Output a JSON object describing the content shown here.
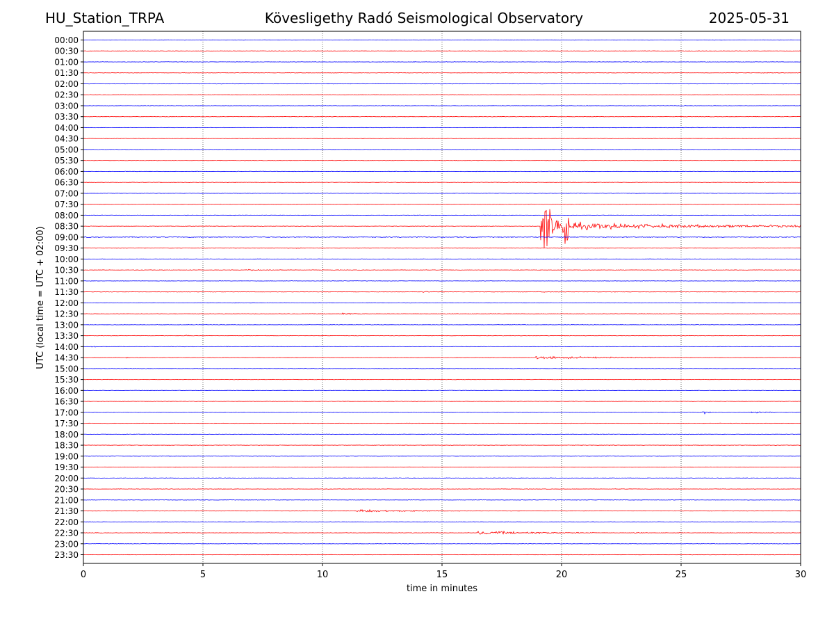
{
  "header": {
    "station": "HU_Station_TRPA",
    "observatory": "Kövesligethy Radó Seismological Observatory",
    "date": "2025-05-31"
  },
  "chart_data": {
    "type": "line",
    "xlabel": "time in minutes",
    "ylabel": "UTC (local time = UTC + 02:00)",
    "xlim": [
      0,
      30
    ],
    "x_ticks": [
      "0",
      "5",
      "10",
      "15",
      "20",
      "25",
      "30"
    ],
    "x_tick_values": [
      0,
      5,
      10,
      15,
      20,
      25,
      30
    ],
    "vertical_grid": "dotted",
    "colors": {
      "even_hour": "#0000ff",
      "half_hour": "#ff0000"
    },
    "rows": [
      "00:00",
      "00:30",
      "01:00",
      "01:30",
      "02:00",
      "02:30",
      "03:00",
      "03:30",
      "04:00",
      "04:30",
      "05:00",
      "05:30",
      "06:00",
      "06:30",
      "07:00",
      "07:30",
      "08:00",
      "08:30",
      "09:00",
      "09:30",
      "10:00",
      "10:30",
      "11:00",
      "11:30",
      "12:00",
      "12:30",
      "13:00",
      "13:30",
      "14:00",
      "14:30",
      "15:00",
      "15:30",
      "16:00",
      "16:30",
      "17:00",
      "17:30",
      "18:00",
      "18:30",
      "19:00",
      "19:30",
      "20:00",
      "20:30",
      "21:00",
      "21:30",
      "22:00",
      "22:30",
      "23:00",
      "23:30"
    ],
    "events": [
      {
        "row": "03:00",
        "start_min": 25.0,
        "duration_min": 0.3,
        "peak_amplitude": 0.35
      },
      {
        "row": "08:30",
        "start_min": 19.1,
        "duration_min": 11.0,
        "peak_amplitude": 14.0,
        "main_event": true
      },
      {
        "row": "09:30",
        "start_min": 8.9,
        "duration_min": 0.25,
        "peak_amplitude": 0.25
      },
      {
        "row": "10:30",
        "start_min": 6.8,
        "duration_min": 1.8,
        "peak_amplitude": 0.3
      },
      {
        "row": "11:30",
        "start_min": 14.1,
        "duration_min": 1.2,
        "peak_amplitude": 0.35
      },
      {
        "row": "11:30",
        "start_min": 19.0,
        "duration_min": 0.8,
        "peak_amplitude": 0.3
      },
      {
        "row": "12:30",
        "start_min": 10.8,
        "duration_min": 1.0,
        "peak_amplitude": 0.4
      },
      {
        "row": "13:30",
        "start_min": 4.3,
        "duration_min": 0.4,
        "peak_amplitude": 0.3
      },
      {
        "row": "14:00",
        "start_min": 0.3,
        "duration_min": 0.3,
        "peak_amplitude": 0.45
      },
      {
        "row": "14:30",
        "start_min": 1.8,
        "duration_min": 0.3,
        "peak_amplitude": 0.35
      },
      {
        "row": "14:30",
        "start_min": 18.9,
        "duration_min": 5.5,
        "peak_amplitude": 0.8
      },
      {
        "row": "17:00",
        "start_min": 25.9,
        "duration_min": 0.4,
        "peak_amplitude": 0.85
      },
      {
        "row": "17:00",
        "start_min": 27.8,
        "duration_min": 1.2,
        "peak_amplitude": 0.8
      },
      {
        "row": "21:30",
        "start_min": 11.4,
        "duration_min": 4.5,
        "peak_amplitude": 0.7
      },
      {
        "row": "22:30",
        "start_min": 16.5,
        "duration_min": 5.0,
        "peak_amplitude": 0.95
      },
      {
        "row": "22:30",
        "start_min": 23.0,
        "duration_min": 0.5,
        "peak_amplitude": 0.3
      }
    ]
  }
}
